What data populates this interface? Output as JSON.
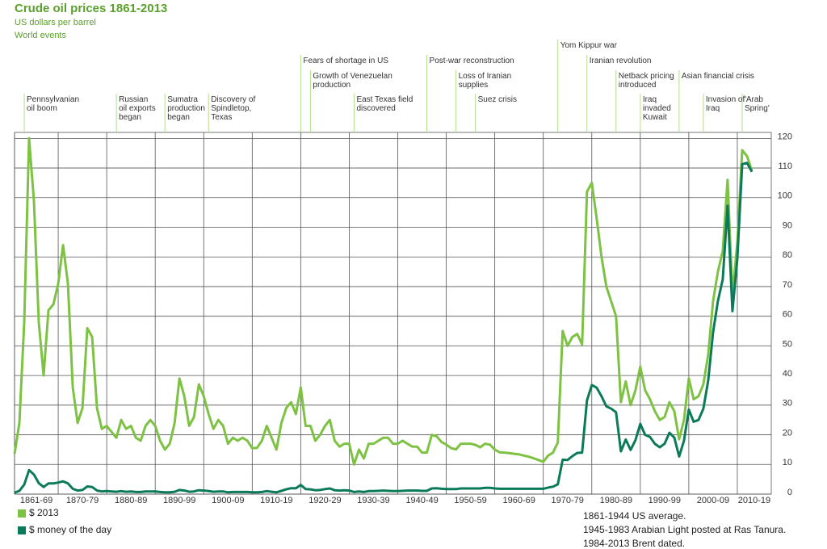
{
  "chart_data": {
    "type": "line",
    "title": "Crude oil prices 1861-2013",
    "subtitle": "US dollars per barrel",
    "annotation_heading": "World events",
    "x": [
      1861,
      1862,
      1863,
      1864,
      1865,
      1866,
      1867,
      1868,
      1869,
      1870,
      1871,
      1872,
      1873,
      1874,
      1875,
      1876,
      1877,
      1878,
      1879,
      1880,
      1881,
      1882,
      1883,
      1884,
      1885,
      1886,
      1887,
      1888,
      1889,
      1890,
      1891,
      1892,
      1893,
      1894,
      1895,
      1896,
      1897,
      1898,
      1899,
      1900,
      1901,
      1902,
      1903,
      1904,
      1905,
      1906,
      1907,
      1908,
      1909,
      1910,
      1911,
      1912,
      1913,
      1914,
      1915,
      1916,
      1917,
      1918,
      1919,
      1920,
      1921,
      1922,
      1923,
      1924,
      1925,
      1926,
      1927,
      1928,
      1929,
      1930,
      1931,
      1932,
      1933,
      1934,
      1935,
      1936,
      1937,
      1938,
      1939,
      1940,
      1941,
      1942,
      1943,
      1944,
      1945,
      1946,
      1947,
      1948,
      1949,
      1950,
      1951,
      1952,
      1953,
      1954,
      1955,
      1956,
      1957,
      1958,
      1959,
      1960,
      1961,
      1962,
      1963,
      1964,
      1965,
      1966,
      1967,
      1968,
      1969,
      1970,
      1971,
      1972,
      1973,
      1974,
      1975,
      1976,
      1977,
      1978,
      1979,
      1980,
      1981,
      1982,
      1983,
      1984,
      1985,
      1986,
      1987,
      1988,
      1989,
      1990,
      1991,
      1992,
      1993,
      1994,
      1995,
      1996,
      1997,
      1998,
      1999,
      2000,
      2001,
      2002,
      2003,
      2004,
      2005,
      2006,
      2007,
      2008,
      2009,
      2010,
      2011,
      2012,
      2013
    ],
    "series": [
      {
        "name": "$ 2013",
        "color": "#7dc242",
        "values": [
          13.6,
          24,
          58,
          120,
          99,
          58,
          40,
          62,
          64,
          71,
          84,
          71,
          36,
          24,
          29,
          56,
          53,
          29,
          22,
          23,
          21,
          19,
          25,
          22,
          23,
          19,
          18,
          23,
          25,
          23,
          18,
          15,
          17,
          24,
          39,
          33,
          23,
          26,
          37,
          33,
          27,
          22,
          25,
          23,
          17,
          19,
          18,
          19,
          18,
          15.5,
          15.6,
          18,
          23,
          19,
          15,
          24,
          29,
          31,
          27,
          36,
          23,
          23,
          18,
          20,
          23,
          25,
          18,
          16,
          17,
          17,
          10,
          15,
          12,
          17,
          17,
          18,
          19,
          19,
          17,
          17,
          18,
          17,
          16,
          16,
          14,
          14,
          20,
          19.5,
          17.6,
          16.7,
          15.5,
          15.1,
          17,
          17,
          17,
          16.6,
          15.8,
          17,
          16.7,
          15,
          14.1,
          14,
          13.8,
          13.6,
          13.4,
          13,
          12.6,
          12.1,
          11.5,
          10.9,
          13,
          14,
          17.4,
          55,
          50,
          53,
          54,
          50.5,
          102,
          105,
          93,
          80,
          70,
          65,
          60,
          31,
          38,
          30,
          35,
          43,
          35,
          32,
          28,
          25,
          26,
          31,
          28,
          18.5,
          25,
          39,
          32,
          33,
          37,
          47,
          65,
          75,
          82,
          106,
          67,
          85,
          116,
          114,
          109
        ]
      },
      {
        "name": "$ money of the day",
        "color": "#0b7a58",
        "values": [
          0.5,
          1.1,
          3.2,
          8.1,
          6.6,
          3.7,
          2.4,
          3.6,
          3.6,
          3.9,
          4.3,
          3.6,
          1.8,
          1.2,
          1.4,
          2.6,
          2.4,
          1.2,
          0.9,
          1,
          0.9,
          0.8,
          1,
          0.8,
          0.9,
          0.7,
          0.7,
          0.9,
          0.9,
          0.9,
          0.7,
          0.6,
          0.6,
          0.8,
          1.4,
          1.2,
          0.8,
          0.9,
          1.3,
          1.2,
          1,
          0.8,
          0.9,
          0.9,
          0.6,
          0.7,
          0.7,
          0.7,
          0.7,
          0.6,
          0.6,
          0.7,
          1,
          0.8,
          0.6,
          1.1,
          1.6,
          2,
          2,
          3.1,
          1.7,
          1.6,
          1.3,
          1.4,
          1.7,
          1.9,
          1.3,
          1.2,
          1.3,
          1.2,
          0.7,
          0.9,
          0.7,
          1,
          1,
          1.1,
          1.2,
          1.1,
          1,
          1,
          1.1,
          1.2,
          1.2,
          1.2,
          1.1,
          1.1,
          1.9,
          2,
          1.8,
          1.7,
          1.7,
          1.7,
          1.9,
          1.9,
          1.9,
          1.9,
          1.9,
          2.1,
          2.1,
          1.9,
          1.8,
          1.8,
          1.8,
          1.8,
          1.8,
          1.8,
          1.8,
          1.8,
          1.8,
          1.8,
          2.2,
          2.5,
          3.3,
          11.6,
          11.5,
          12.8,
          13.9,
          14,
          31.6,
          36.8,
          35.9,
          33,
          29.6,
          28.8,
          27.6,
          14.4,
          18.4,
          14.9,
          18.2,
          23.7,
          20,
          19.3,
          17,
          15.8,
          17,
          20.7,
          19.1,
          12.7,
          18,
          28.5,
          24.4,
          25,
          28.8,
          38.3,
          54.5,
          65.1,
          72.4,
          97.3,
          61.7,
          79.5,
          111.3,
          111.7,
          108.7
        ]
      }
    ],
    "xlim": [
      1861,
      2017
    ],
    "xticks": [
      {
        "value": 1861,
        "label": "1861-69"
      },
      {
        "value": 1870,
        "label": "1870-79"
      },
      {
        "value": 1880,
        "label": "1880-89"
      },
      {
        "value": 1890,
        "label": "1890-99"
      },
      {
        "value": 1900,
        "label": "1900-09"
      },
      {
        "value": 1910,
        "label": "1910-19"
      },
      {
        "value": 1920,
        "label": "1920-29"
      },
      {
        "value": 1930,
        "label": "1930-39"
      },
      {
        "value": 1940,
        "label": "1940-49"
      },
      {
        "value": 1950,
        "label": "1950-59"
      },
      {
        "value": 1960,
        "label": "1960-69"
      },
      {
        "value": 1970,
        "label": "1970-79"
      },
      {
        "value": 1980,
        "label": "1980-89"
      },
      {
        "value": 1990,
        "label": "1990-99"
      },
      {
        "value": 2000,
        "label": "2000-09"
      },
      {
        "value": 2010,
        "label": "2010-19"
      }
    ],
    "ylim": [
      0,
      122
    ],
    "yticks": [
      0,
      10,
      20,
      30,
      40,
      50,
      60,
      70,
      80,
      90,
      100,
      110,
      120
    ],
    "grid": true,
    "annotations": [
      {
        "text": "Pennsylvanian\noil boom",
        "x": 1863
      },
      {
        "text": "Russian\noil exports\nbegan",
        "x": 1882
      },
      {
        "text": "Sumatra\nproduction\nbegan",
        "x": 1892
      },
      {
        "text": "Discovery of\nSpindletop,\nTexas",
        "x": 1901
      },
      {
        "text": "Fears of shortage in US",
        "x": 1920
      },
      {
        "text": "Growth of Venezuelan\nproduction",
        "x": 1922
      },
      {
        "text": "East Texas field\ndiscovered",
        "x": 1931
      },
      {
        "text": "Post-war reconstruction",
        "x": 1946
      },
      {
        "text": "Loss of Iranian\nsupplies",
        "x": 1952
      },
      {
        "text": "Suez crisis",
        "x": 1956
      },
      {
        "text": "Yom Kippur war",
        "x": 1973
      },
      {
        "text": "Iranian revolution",
        "x": 1979
      },
      {
        "text": "Netback pricing\nintroduced",
        "x": 1985
      },
      {
        "text": "Iraq\ninvaded\nKuwait",
        "x": 1990
      },
      {
        "text": "Asian financial crisis",
        "x": 1998
      },
      {
        "text": "Invasion of\nIraq",
        "x": 2003
      },
      {
        "text": "'Arab\nSpring'",
        "x": 2011
      }
    ],
    "notes": [
      "1861-1944 US average.",
      "1945-1983 Arabian Light posted at Ras Tanura.",
      "1984-2013 Brent dated."
    ]
  }
}
